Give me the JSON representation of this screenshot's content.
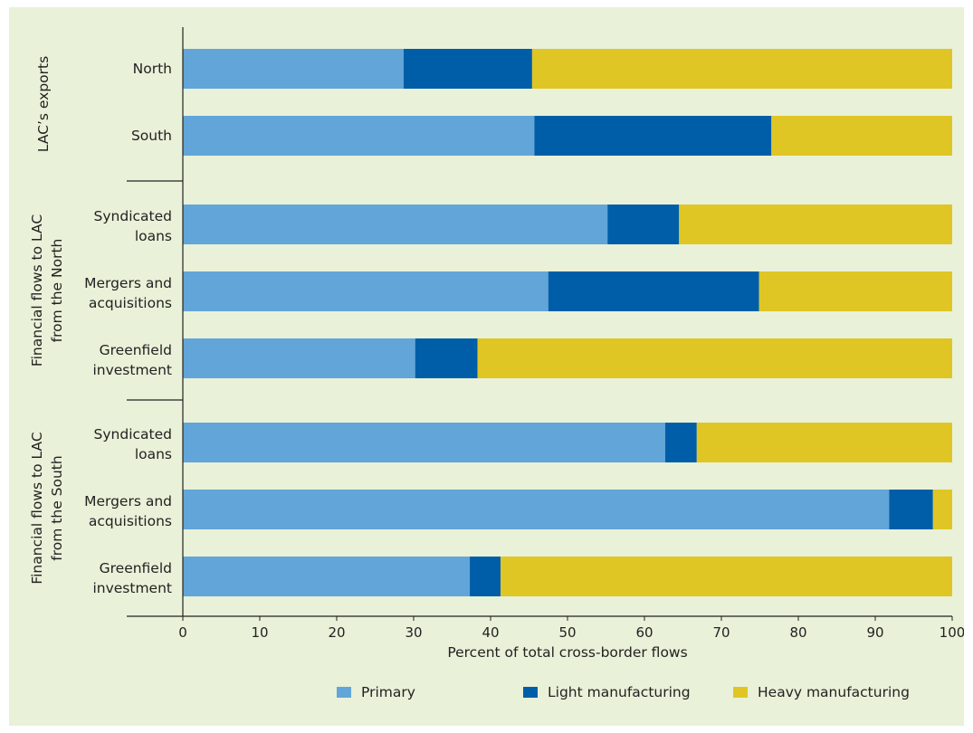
{
  "chart_data": {
    "type": "bar",
    "orientation": "horizontal",
    "stacked": true,
    "title": "",
    "xlabel": "Percent of total cross-border flows",
    "ylabel": "",
    "xlim": [
      0,
      100
    ],
    "xticks": [
      0,
      10,
      20,
      30,
      40,
      50,
      60,
      70,
      80,
      90,
      100
    ],
    "grid": false,
    "legend_position": "bottom",
    "groups": [
      {
        "label": "LAC’s exports",
        "categories": [
          [
            "North"
          ],
          [
            "South"
          ]
        ]
      },
      {
        "label": "Financial flows to LAC from the North",
        "categories": [
          [
            "Syndicated",
            "loans"
          ],
          [
            "Mergers and",
            "acquisitions"
          ],
          [
            "Greenfield",
            "investment"
          ]
        ]
      },
      {
        "label": "Financial flows to LAC from the South",
        "categories": [
          [
            "Syndicated",
            "loans"
          ],
          [
            "Mergers and",
            "acquisitions"
          ],
          [
            "Greenfield",
            "investment"
          ]
        ]
      }
    ],
    "series": [
      {
        "name": "Primary",
        "color": "#62a5d9",
        "values": [
          28.7,
          45.7,
          55.2,
          47.5,
          30.2,
          62.7,
          91.8,
          37.3
        ]
      },
      {
        "name": "Light manufacturing",
        "color": "#005ea8",
        "values": [
          16.7,
          30.8,
          9.3,
          27.4,
          8.1,
          4.1,
          5.7,
          4.0
        ]
      },
      {
        "name": "Heavy manufacturing",
        "color": "#dfc624",
        "values": [
          54.6,
          23.5,
          35.5,
          25.1,
          61.7,
          33.2,
          2.5,
          58.7
        ]
      }
    ]
  }
}
